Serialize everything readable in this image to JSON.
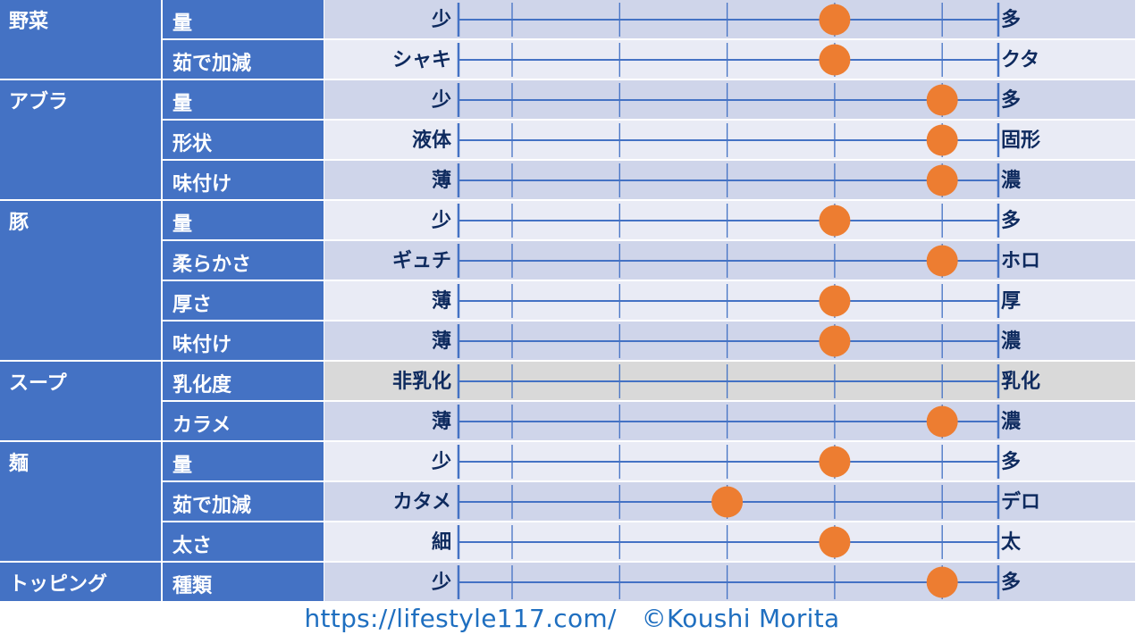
{
  "colors": {
    "category_bg": "#4472C4",
    "row_dark": "#CFD5EA",
    "row_light": "#E9EBF5",
    "row_disabled": "#D9D9D9",
    "line": "#4472C4",
    "dot": "#ED7D31",
    "label_text": "#0E2A5E",
    "footer_text": "#1F6FC0"
  },
  "chart_data": {
    "type": "scatter",
    "scale": {
      "min": 1,
      "max": 5,
      "ticks": [
        1,
        2,
        3,
        4,
        5
      ]
    },
    "groups": [
      {
        "category": "野菜",
        "rows": [
          {
            "attribute": "量",
            "left": "少",
            "right": "多",
            "value": 4
          },
          {
            "attribute": "茹で加減",
            "left": "シャキ",
            "right": "クタ",
            "value": 4
          }
        ]
      },
      {
        "category": "アブラ",
        "rows": [
          {
            "attribute": "量",
            "left": "少",
            "right": "多",
            "value": 5
          },
          {
            "attribute": "形状",
            "left": "液体",
            "right": "固形",
            "value": 5
          },
          {
            "attribute": "味付け",
            "left": "薄",
            "right": "濃",
            "value": 5
          }
        ]
      },
      {
        "category": "豚",
        "rows": [
          {
            "attribute": "量",
            "left": "少",
            "right": "多",
            "value": 4
          },
          {
            "attribute": "柔らかさ",
            "left": "ギュチ",
            "right": "ホロ",
            "value": 5
          },
          {
            "attribute": "厚さ",
            "left": "薄",
            "right": "厚",
            "value": 4
          },
          {
            "attribute": "味付け",
            "left": "薄",
            "right": "濃",
            "value": 4
          }
        ]
      },
      {
        "category": "スープ",
        "rows": [
          {
            "attribute": "乳化度",
            "left": "非乳化",
            "right": "乳化",
            "value": null,
            "disabled": true
          },
          {
            "attribute": "カラメ",
            "left": "薄",
            "right": "濃",
            "value": 5
          }
        ]
      },
      {
        "category": "麺",
        "rows": [
          {
            "attribute": "量",
            "left": "少",
            "right": "多",
            "value": 4
          },
          {
            "attribute": "茹で加減",
            "left": "カタメ",
            "right": "デロ",
            "value": 3
          },
          {
            "attribute": "太さ",
            "left": "細",
            "right": "太",
            "value": 4
          }
        ]
      },
      {
        "category": "トッピング",
        "rows": [
          {
            "attribute": "種類",
            "left": "少",
            "right": "多",
            "value": 5
          }
        ]
      }
    ]
  },
  "footer": {
    "url": "https://lifestyle117.com/",
    "copyright": "©Koushi Morita"
  }
}
